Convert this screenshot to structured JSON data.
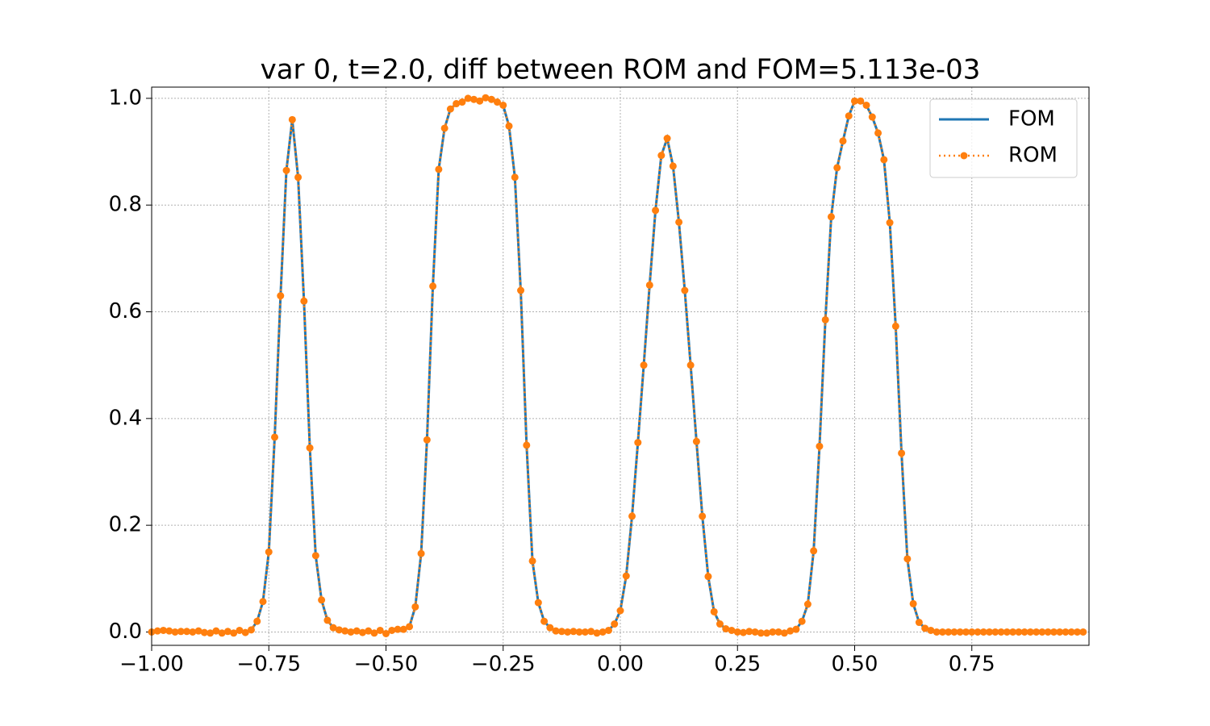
{
  "chart_data": {
    "type": "line",
    "title": "var 0, t=2.0,  diff between ROM and FOM=5.113e-03",
    "x": [
      -1,
      -0.9875,
      -0.975,
      -0.9625,
      -0.95,
      -0.9375,
      -0.925,
      -0.9125,
      -0.9,
      -0.8875,
      -0.875,
      -0.8625,
      -0.85,
      -0.8375,
      -0.825,
      -0.8125,
      -0.8,
      -0.7875,
      -0.775,
      -0.7625,
      -0.75,
      -0.7375,
      -0.725,
      -0.7125,
      -0.7,
      -0.6875,
      -0.675,
      -0.6625,
      -0.65,
      -0.6375,
      -0.625,
      -0.6125,
      -0.6,
      -0.5875,
      -0.575,
      -0.5625,
      -0.55,
      -0.5375,
      -0.525,
      -0.5125,
      -0.5,
      -0.4875,
      -0.475,
      -0.4625,
      -0.45,
      -0.4375,
      -0.425,
      -0.4125,
      -0.4,
      -0.3875,
      -0.375,
      -0.3625,
      -0.35,
      -0.3375,
      -0.325,
      -0.3125,
      -0.3,
      -0.2875,
      -0.275,
      -0.2625,
      -0.25,
      -0.2375,
      -0.225,
      -0.2125,
      -0.2,
      -0.1875,
      -0.175,
      -0.1625,
      -0.15,
      -0.1375,
      -0.125,
      -0.1125,
      -0.1,
      -0.0875,
      -0.075,
      -0.0625,
      -0.05,
      -0.0375,
      -0.025,
      -0.0125,
      0,
      0.0125,
      0.025,
      0.0375,
      0.05,
      0.0625,
      0.075,
      0.0875,
      0.1,
      0.1125,
      0.125,
      0.1375,
      0.15,
      0.1625,
      0.175,
      0.1875,
      0.2,
      0.2125,
      0.225,
      0.2375,
      0.25,
      0.2625,
      0.275,
      0.2875,
      0.3,
      0.3125,
      0.325,
      0.3375,
      0.35,
      0.3625,
      0.375,
      0.3875,
      0.4,
      0.4125,
      0.425,
      0.4375,
      0.45,
      0.4625,
      0.475,
      0.4875,
      0.5,
      0.5125,
      0.525,
      0.5375,
      0.55,
      0.5625,
      0.575,
      0.5875,
      0.6,
      0.6125,
      0.625,
      0.6375,
      0.65,
      0.6625,
      0.675,
      0.6875,
      0.7,
      0.7125,
      0.725,
      0.7375,
      0.75,
      0.7625,
      0.775,
      0.7875,
      0.8,
      0.8125,
      0.825,
      0.8375,
      0.85,
      0.8625,
      0.875,
      0.8875,
      0.9,
      0.9125,
      0.925,
      0.9375,
      0.95,
      0.9625,
      0.975,
      0.9875
    ],
    "series": [
      {
        "name": "FOM",
        "color": "#1f77b4",
        "style": "solid",
        "values": [
          0,
          0.002,
          0.003,
          0.002,
          0,
          0.001,
          0.001,
          0,
          0.002,
          -0.001,
          -0.002,
          0.002,
          -0.002,
          0.001,
          -0.002,
          0.003,
          -0.001,
          0.004,
          0.02,
          0.057,
          0.15,
          0.365,
          0.63,
          0.865,
          0.96,
          0.852,
          0.62,
          0.345,
          0.143,
          0.06,
          0.022,
          0.008,
          0.004,
          0.002,
          0,
          0.002,
          -0.001,
          0.002,
          -0.002,
          0.003,
          -0.003,
          0.003,
          0.005,
          0.005,
          0.01,
          0.047,
          0.147,
          0.36,
          0.648,
          0.867,
          0.944,
          0.98,
          0.99,
          0.993,
          1.0,
          0.998,
          0.995,
          1.001,
          0.998,
          0.993,
          0.987,
          0.948,
          0.852,
          0.64,
          0.35,
          0.133,
          0.055,
          0.02,
          0.008,
          0.002,
          0.001,
          0,
          0.001,
          0,
          0,
          0.001,
          -0.002,
          0,
          0.003,
          0.015,
          0.04,
          0.105,
          0.217,
          0.355,
          0.5,
          0.65,
          0.79,
          0.893,
          0.925,
          0.873,
          0.768,
          0.64,
          0.5,
          0.357,
          0.217,
          0.104,
          0.038,
          0.015,
          0.006,
          0.003,
          0,
          -0.001,
          0.001,
          0,
          -0.002,
          -0.002,
          0,
          0,
          -0.002,
          0.002,
          0.005,
          0.02,
          0.052,
          0.152,
          0.348,
          0.585,
          0.778,
          0.87,
          0.92,
          0.967,
          0.995,
          0.995,
          0.987,
          0.965,
          0.935,
          0.885,
          0.767,
          0.573,
          0.335,
          0.137,
          0.053,
          0.018,
          0.007,
          0.003,
          0,
          0,
          0,
          0,
          0,
          0,
          0,
          0,
          0,
          0,
          0,
          0,
          0,
          0,
          0,
          0,
          0,
          0,
          0,
          0,
          0,
          0,
          0,
          0,
          0,
          0
        ]
      },
      {
        "name": "ROM",
        "color": "#ff7f0e",
        "style": "dotted",
        "marker": "o",
        "values": [
          0,
          0.002,
          0.003,
          0.002,
          0,
          0.001,
          0.001,
          0,
          0.002,
          -0.001,
          -0.002,
          0.002,
          -0.002,
          0.001,
          -0.002,
          0.003,
          -0.001,
          0.004,
          0.02,
          0.057,
          0.15,
          0.365,
          0.63,
          0.865,
          0.96,
          0.852,
          0.62,
          0.345,
          0.143,
          0.06,
          0.022,
          0.008,
          0.004,
          0.002,
          0,
          0.002,
          -0.001,
          0.002,
          -0.002,
          0.003,
          -0.003,
          0.003,
          0.005,
          0.005,
          0.01,
          0.047,
          0.147,
          0.36,
          0.648,
          0.867,
          0.944,
          0.98,
          0.99,
          0.993,
          1.0,
          0.998,
          0.995,
          1.001,
          0.998,
          0.993,
          0.987,
          0.948,
          0.852,
          0.64,
          0.35,
          0.133,
          0.055,
          0.02,
          0.008,
          0.002,
          0.001,
          0,
          0.001,
          0,
          0,
          0.001,
          -0.002,
          0,
          0.003,
          0.015,
          0.04,
          0.105,
          0.217,
          0.355,
          0.5,
          0.65,
          0.79,
          0.893,
          0.925,
          0.873,
          0.768,
          0.64,
          0.5,
          0.357,
          0.217,
          0.104,
          0.038,
          0.015,
          0.006,
          0.003,
          0,
          -0.001,
          0.001,
          0,
          -0.002,
          -0.002,
          0,
          0,
          -0.002,
          0.002,
          0.005,
          0.02,
          0.052,
          0.152,
          0.348,
          0.585,
          0.778,
          0.87,
          0.92,
          0.967,
          0.995,
          0.995,
          0.987,
          0.965,
          0.935,
          0.885,
          0.767,
          0.573,
          0.335,
          0.137,
          0.053,
          0.018,
          0.007,
          0.003,
          0,
          0,
          0,
          0,
          0,
          0,
          0,
          0,
          0,
          0,
          0,
          0,
          0,
          0,
          0,
          0,
          0,
          0,
          0,
          0,
          0,
          0,
          0,
          0,
          0,
          0
        ]
      }
    ],
    "xlim": [
      -1,
      1
    ],
    "xticks": [
      {
        "value": -1,
        "label": "−1.00"
      },
      {
        "value": -0.75,
        "label": "−0.75"
      },
      {
        "value": -0.5,
        "label": "−0.50"
      },
      {
        "value": -0.25,
        "label": "−0.25"
      },
      {
        "value": 0,
        "label": "0.00"
      },
      {
        "value": 0.25,
        "label": "0.25"
      },
      {
        "value": 0.5,
        "label": "0.50"
      },
      {
        "value": 0.75,
        "label": "0.75"
      }
    ],
    "ylim": [
      -0.025,
      1.021
    ],
    "yticks": [
      {
        "value": 0,
        "label": "0.0"
      },
      0.2,
      0.4,
      0.6,
      0.8,
      {
        "value": 1,
        "label": "1.0"
      }
    ],
    "grid": true,
    "legend": "upper right"
  }
}
